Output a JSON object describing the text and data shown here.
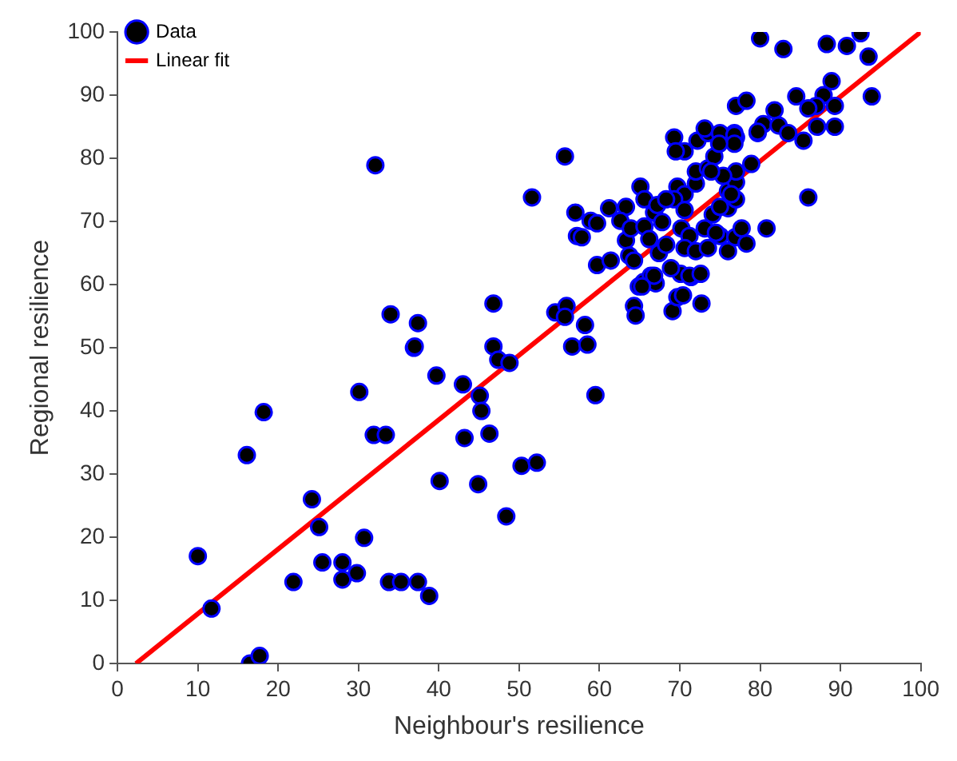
{
  "chart_data": {
    "type": "scatter",
    "xlabel": "Neighbour's resilience",
    "ylabel": "Regional resilience",
    "xlim": [
      0,
      100
    ],
    "ylim": [
      0,
      100
    ],
    "xticks": [
      0,
      10,
      20,
      30,
      40,
      50,
      60,
      70,
      80,
      90,
      100
    ],
    "yticks": [
      0,
      10,
      20,
      30,
      40,
      50,
      60,
      70,
      80,
      90,
      100
    ],
    "grid": false,
    "legend": "top left",
    "marker": "circle",
    "series": [
      {
        "name": "Data",
        "color": "#000000",
        "x": [
          10.0,
          11.7,
          16.1,
          18.2,
          16.5,
          17.7,
          21.9,
          24.2,
          25.1,
          25.5,
          28.0,
          28.0,
          29.8,
          30.7,
          30.1,
          31.9,
          33.4,
          39.7,
          36.9,
          40.1,
          33.8,
          35.3,
          37.4,
          38.8,
          32.1,
          34.0,
          37.4,
          37.0,
          43.0,
          45.1,
          45.3,
          43.2,
          46.3,
          50.3,
          52.2,
          44.9,
          48.4,
          46.8,
          46.8,
          47.4,
          48.8,
          51.6,
          55.7,
          57.0,
          57.2,
          54.5,
          55.9,
          55.7,
          56.6,
          58.2,
          58.5,
          59.5,
          64.3,
          64.5,
          69.1,
          69.7,
          70.4,
          72.7,
          64.9,
          65.5,
          66.4,
          67.0,
          70.1,
          71.4,
          57.8,
          58.9,
          59.7,
          61.2,
          59.7,
          61.4,
          63.3,
          62.6,
          63.3,
          63.7,
          64.3,
          65.1,
          65.6,
          63.9,
          65.6,
          66.8,
          66.2,
          67.4,
          68.3,
          66.8,
          65.3,
          69.7,
          70.6,
          72.0,
          69.3,
          70.6,
          70.2,
          71.2,
          70.6,
          72.0,
          68.9,
          71.2,
          72.6,
          73.5,
          75.0,
          76.0,
          76.9,
          78.3,
          73.1,
          74.1,
          76.0,
          77.0,
          76.0,
          72.0,
          73.5,
          77.0,
          69.3,
          70.6,
          69.5,
          72.2,
          74.3,
          73.5,
          77.0,
          76.8,
          79.7,
          67.2,
          68.3,
          67.8,
          80.0,
          82.9,
          88.3,
          90.8,
          92.5,
          93.5,
          93.9,
          88.9,
          87.9,
          89.3,
          84.5,
          87.0,
          86.0,
          77.0,
          78.3,
          81.8,
          80.4,
          79.7,
          82.3,
          83.5,
          85.4,
          87.1,
          89.3,
          73.1,
          75.0,
          76.8,
          76.8,
          74.9,
          86.0,
          80.8,
          78.9,
          77.0,
          75.4,
          73.9,
          76.4,
          75.0,
          77.7,
          74.5
        ],
        "values": [
          17.0,
          8.7,
          33.0,
          39.8,
          0.0,
          1.2,
          12.9,
          26.0,
          21.6,
          16.0,
          16.0,
          13.3,
          14.3,
          19.9,
          43.0,
          36.2,
          36.2,
          45.6,
          50.0,
          28.9,
          12.9,
          12.9,
          12.9,
          10.7,
          78.9,
          55.3,
          53.9,
          50.2,
          44.2,
          42.4,
          40.0,
          35.7,
          36.4,
          31.3,
          31.8,
          28.4,
          23.3,
          57.0,
          50.2,
          48.1,
          47.6,
          73.8,
          80.3,
          71.4,
          67.7,
          55.6,
          56.6,
          54.9,
          50.2,
          53.6,
          50.5,
          42.5,
          56.6,
          55.1,
          55.8,
          58.0,
          58.3,
          57.0,
          59.7,
          60.4,
          61.4,
          60.2,
          61.7,
          61.2,
          67.5,
          70.1,
          69.7,
          72.1,
          63.1,
          63.8,
          72.3,
          70.1,
          67.0,
          64.6,
          63.8,
          75.5,
          73.5,
          68.9,
          69.2,
          71.4,
          67.2,
          65.0,
          66.3,
          61.4,
          59.7,
          75.5,
          74.3,
          76.0,
          73.5,
          71.8,
          68.9,
          67.7,
          65.8,
          65.3,
          62.6,
          61.4,
          61.7,
          65.8,
          67.7,
          65.3,
          67.5,
          66.5,
          68.9,
          71.1,
          72.1,
          73.5,
          74.8,
          77.9,
          78.4,
          76.2,
          83.3,
          81.1,
          81.1,
          82.8,
          80.3,
          84.0,
          83.3,
          84.0,
          84.0,
          72.6,
          73.5,
          69.9,
          99.0,
          97.3,
          98.1,
          97.8,
          99.8,
          96.1,
          89.8,
          92.2,
          90.0,
          88.3,
          89.8,
          88.3,
          87.9,
          88.3,
          89.1,
          87.6,
          85.4,
          84.2,
          85.2,
          84.0,
          82.8,
          85.0,
          85.0,
          84.7,
          84.0,
          83.7,
          82.3,
          82.3,
          73.8,
          68.9,
          79.1,
          77.9,
          77.2,
          77.9,
          74.3,
          72.3,
          68.9,
          68.2
        ]
      },
      {
        "name": "Linear fit",
        "type": "line",
        "color": "#ff0000",
        "line_style": "solid",
        "marker": "none",
        "x": [
          2.3,
          100
        ],
        "values": [
          0,
          100
        ]
      }
    ]
  }
}
